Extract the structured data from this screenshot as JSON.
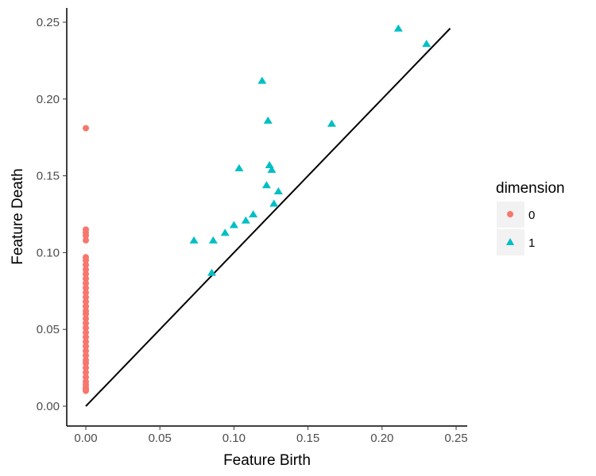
{
  "chart_data": {
    "type": "scatter",
    "title": "",
    "xlabel": "Feature Birth",
    "ylabel": "Feature Death",
    "xlim": [
      -0.0125,
      0.2575
    ],
    "ylim": [
      -0.0125,
      0.2575
    ],
    "xticks": [
      "0.00",
      "0.05",
      "0.10",
      "0.15",
      "0.20",
      "0.25"
    ],
    "yticks": [
      "0.00",
      "0.05",
      "0.10",
      "0.15",
      "0.20",
      "0.25"
    ],
    "tick_values": [
      0,
      0.05,
      0.1,
      0.15,
      0.2,
      0.25
    ],
    "grid": false,
    "diagonal": [
      0,
      0.246
    ],
    "legend": {
      "title": "dimension",
      "placement": "right",
      "entries": [
        "0",
        "1"
      ]
    },
    "colors": {
      "0": "#F8766D",
      "1": "#00BFC4"
    },
    "series": [
      {
        "name": "0",
        "shape": "circle",
        "x": [
          0,
          0,
          0,
          0,
          0,
          0,
          0,
          0,
          0,
          0,
          0,
          0,
          0,
          0,
          0,
          0,
          0,
          0,
          0,
          0,
          0,
          0,
          0,
          0,
          0,
          0,
          0,
          0,
          0,
          0,
          0,
          0,
          0,
          0,
          0,
          0,
          0,
          0,
          0
        ],
        "y": [
          0.181,
          0.115,
          0.113,
          0.111,
          0.108,
          0.097,
          0.095,
          0.092,
          0.089,
          0.086,
          0.083,
          0.08,
          0.077,
          0.074,
          0.071,
          0.068,
          0.065,
          0.062,
          0.06,
          0.057,
          0.054,
          0.051,
          0.048,
          0.045,
          0.042,
          0.039,
          0.036,
          0.033,
          0.03,
          0.028,
          0.025,
          0.022,
          0.019,
          0.016,
          0.014,
          0.012,
          0.011,
          0.01,
          0.065
        ]
      },
      {
        "name": "1",
        "shape": "triangle",
        "x": [
          0.073,
          0.086,
          0.085,
          0.094,
          0.1,
          0.108,
          0.113,
          0.1035,
          0.119,
          0.123,
          0.124,
          0.1255,
          0.122,
          0.13,
          0.127,
          0.166,
          0.211,
          0.23
        ],
        "y": [
          0.108,
          0.108,
          0.087,
          0.113,
          0.118,
          0.121,
          0.125,
          0.155,
          0.212,
          0.186,
          0.157,
          0.154,
          0.144,
          0.14,
          0.132,
          0.184,
          0.246,
          0.236
        ]
      }
    ]
  }
}
